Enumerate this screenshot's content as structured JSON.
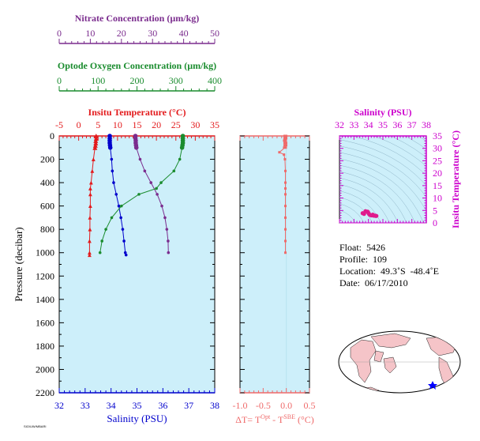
{
  "chart_data": [
    {
      "type": "scatter",
      "name": "profile",
      "ylabel": "Pressure (decibar)",
      "ylim": [
        0,
        2200
      ],
      "yticks": [
        0,
        200,
        400,
        600,
        800,
        1000,
        1200,
        1400,
        1600,
        1800,
        2000,
        2200
      ],
      "axes": {
        "nitrate": {
          "label": "Nitrate Concentration (µm/kg)",
          "lim": [
            0,
            50
          ],
          "ticks": [
            "0",
            "10",
            "20",
            "30",
            "40",
            "50"
          ],
          "color": "#7b2d8e"
        },
        "oxygen": {
          "label": "Optode Oxygen Concentration (µm/kg)",
          "lim": [
            0,
            400
          ],
          "ticks": [
            "0",
            "100",
            "200",
            "300",
            "400"
          ],
          "color": "#1a8c2e"
        },
        "temperature": {
          "label": "Insitu Temperature (°C)",
          "lim": [
            -5,
            35
          ],
          "ticks": [
            "-5",
            "0",
            "5",
            "10",
            "15",
            "20",
            "25",
            "30",
            "35"
          ],
          "color": "#e31a1c"
        },
        "salinity": {
          "label": "Salinity (PSU)",
          "lim": [
            32,
            38
          ],
          "ticks": [
            "32",
            "33",
            "34",
            "35",
            "36",
            "37",
            "38"
          ],
          "color": "#0000cc"
        }
      },
      "series": [
        {
          "key": "temperature",
          "color": "#e31a1c",
          "marker": "triangle",
          "points": [
            [
              4.5,
              0
            ],
            [
              4.5,
              20
            ],
            [
              4.4,
              40
            ],
            [
              4.4,
              60
            ],
            [
              4.3,
              80
            ],
            [
              4.2,
              100
            ],
            [
              3.8,
              200
            ],
            [
              3.5,
              300
            ],
            [
              3.2,
              400
            ],
            [
              3.0,
              450
            ],
            [
              3.0,
              500
            ],
            [
              3.0,
              600
            ],
            [
              2.9,
              700
            ],
            [
              2.9,
              800
            ],
            [
              2.8,
              900
            ],
            [
              2.8,
              1000
            ],
            [
              2.8,
              1020
            ]
          ]
        },
        {
          "key": "salinity",
          "color": "#0000cc",
          "marker": "circle",
          "points": [
            [
              33.95,
              0
            ],
            [
              33.95,
              20
            ],
            [
              33.95,
              40
            ],
            [
              33.95,
              60
            ],
            [
              33.96,
              80
            ],
            [
              33.97,
              100
            ],
            [
              34.02,
              200
            ],
            [
              34.05,
              300
            ],
            [
              34.1,
              400
            ],
            [
              34.2,
              500
            ],
            [
              34.3,
              600
            ],
            [
              34.38,
              700
            ],
            [
              34.45,
              800
            ],
            [
              34.5,
              900
            ],
            [
              34.55,
              1000
            ],
            [
              34.58,
              1020
            ]
          ]
        },
        {
          "key": "nitrate",
          "color": "#7b2d8e",
          "marker": "circle",
          "points": [
            [
              24.5,
              0
            ],
            [
              24.5,
              20
            ],
            [
              24.6,
              40
            ],
            [
              24.6,
              60
            ],
            [
              24.7,
              80
            ],
            [
              24.8,
              100
            ],
            [
              26,
              200
            ],
            [
              27.5,
              300
            ],
            [
              29.5,
              400
            ],
            [
              31.5,
              500
            ],
            [
              33,
              600
            ],
            [
              34,
              700
            ],
            [
              34.6,
              800
            ],
            [
              35,
              900
            ],
            [
              35.1,
              1000
            ]
          ]
        },
        {
          "key": "oxygen",
          "color": "#1a8c2e",
          "marker": "circle",
          "points": [
            [
              318,
              0
            ],
            [
              318,
              20
            ],
            [
              318,
              40
            ],
            [
              318,
              60
            ],
            [
              317,
              80
            ],
            [
              316,
              100
            ],
            [
              310,
              200
            ],
            [
              295,
              300
            ],
            [
              262,
              400
            ],
            [
              250,
              450
            ],
            [
              205,
              500
            ],
            [
              160,
              600
            ],
            [
              135,
              700
            ],
            [
              120,
              800
            ],
            [
              110,
              900
            ],
            [
              105,
              1000
            ]
          ]
        }
      ]
    },
    {
      "type": "scatter",
      "name": "delta-t",
      "xlabel": "ΔT= T<sup>Opt</sup> - T<sup>SBE</sup> (°C)",
      "xlabel_parts": [
        "ΔT= T",
        "Opt",
        " - T",
        "SBE",
        " (°C)"
      ],
      "xlim": [
        -1.0,
        0.5
      ],
      "xticks": [
        "-1.0",
        "-0.5",
        "0.0",
        "0.5"
      ],
      "color": "#ef6a6a",
      "points": [
        [
          -0.02,
          0
        ],
        [
          -0.02,
          20
        ],
        [
          -0.03,
          40
        ],
        [
          -0.02,
          60
        ],
        [
          -0.02,
          80
        ],
        [
          -0.03,
          100
        ],
        [
          -0.15,
          140
        ],
        [
          -0.05,
          160
        ],
        [
          -0.03,
          200
        ],
        [
          -0.02,
          300
        ],
        [
          -0.02,
          400
        ],
        [
          -0.02,
          450
        ],
        [
          -0.02,
          500
        ],
        [
          -0.02,
          600
        ],
        [
          -0.02,
          700
        ],
        [
          -0.02,
          800
        ],
        [
          -0.02,
          900
        ],
        [
          -0.02,
          1000
        ]
      ]
    },
    {
      "type": "scatter",
      "name": "ts-diagram",
      "xlabel": "Salinity (PSU)",
      "ylabel": "Insitu Temperature (°C)",
      "xlim": [
        32,
        38
      ],
      "ylim": [
        0,
        35
      ],
      "xticks": [
        "32",
        "33",
        "34",
        "35",
        "36",
        "37",
        "38"
      ],
      "yticks": [
        "0",
        "5",
        "10",
        "15",
        "20",
        "25",
        "30",
        "35"
      ],
      "color": "#e01a8c",
      "points": [
        [
          33.95,
          4.5
        ],
        [
          33.97,
          4.3
        ],
        [
          34.02,
          3.8
        ],
        [
          34.05,
          3.5
        ],
        [
          34.1,
          3.2
        ],
        [
          34.2,
          3.0
        ],
        [
          34.3,
          3.0
        ],
        [
          34.38,
          2.9
        ],
        [
          34.45,
          2.9
        ],
        [
          34.5,
          2.8
        ],
        [
          34.55,
          2.8
        ],
        [
          33.7,
          3.6
        ],
        [
          33.6,
          3.9
        ],
        [
          33.8,
          4.7
        ],
        [
          34.3,
          3.3
        ]
      ]
    }
  ],
  "info": {
    "float": "Float:  5426",
    "profile": "Profile:  109",
    "location": "Location:  49.3˚S  -48.4˚E",
    "date": "Date:  06/17/2010"
  },
  "footer": "SIO/UW/MBARI"
}
